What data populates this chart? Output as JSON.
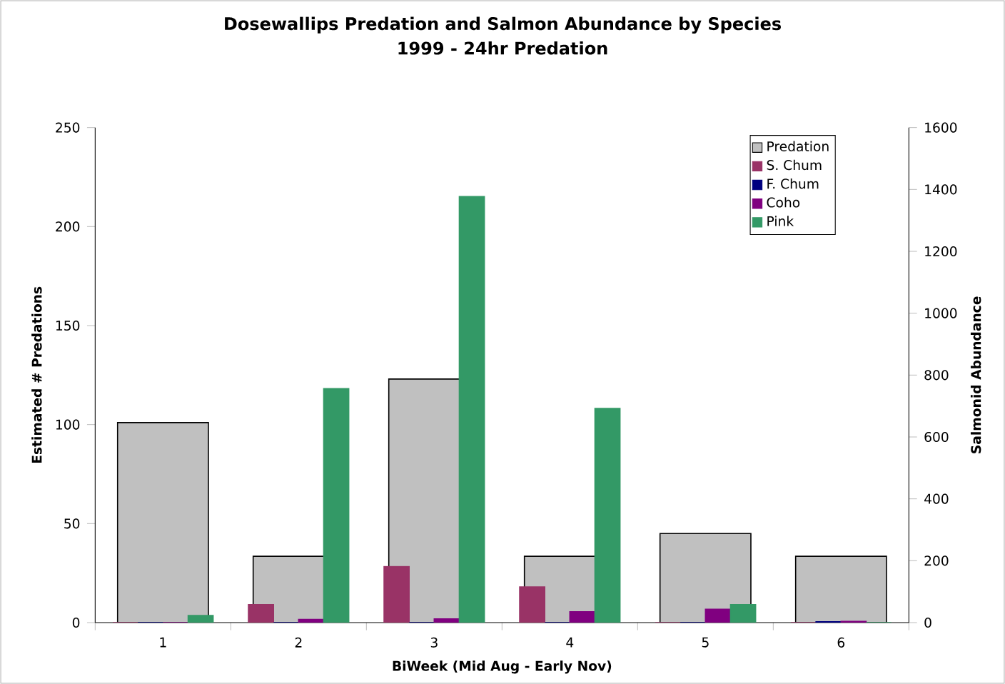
{
  "chart_data": {
    "type": "bar",
    "title": "Dosewallips Predation and Salmon Abundance by Species",
    "subtitle": "1999 - 24hr Predation",
    "xlabel": "BiWeek (Mid Aug - Early Nov)",
    "ylabel": "Estimated # Predations",
    "y2label": "Salmonid Abundance",
    "categories": [
      "1",
      "2",
      "3",
      "4",
      "5",
      "6"
    ],
    "series": [
      {
        "name": "Predation",
        "color": "#c0c0c0",
        "values": [
          101,
          33.5,
          123,
          33.5,
          45,
          33.5
        ]
      },
      {
        "name": "S. Chum",
        "color": "#993366",
        "axis": "y2",
        "values": [
          0,
          58,
          181,
          115,
          0,
          0
        ]
      },
      {
        "name": "F. Chum",
        "color": "#000080",
        "axis": "y2",
        "values": [
          0,
          0,
          0,
          0,
          0,
          3
        ]
      },
      {
        "name": "Coho",
        "color": "#800080",
        "axis": "y2",
        "values": [
          0,
          10,
          12,
          35,
          43,
          4
        ]
      },
      {
        "name": "Pink",
        "color": "#339966",
        "axis": "y2",
        "values": [
          23,
          756,
          1377,
          692,
          58,
          0
        ]
      }
    ],
    "ylim": [
      0,
      250
    ],
    "yticks": [
      0,
      50,
      100,
      150,
      200,
      250
    ],
    "y2lim": [
      0,
      1600
    ],
    "y2ticks": [
      0,
      200,
      400,
      600,
      800,
      1000,
      1200,
      1400,
      1600
    ],
    "legend": "top right",
    "grid": false
  }
}
